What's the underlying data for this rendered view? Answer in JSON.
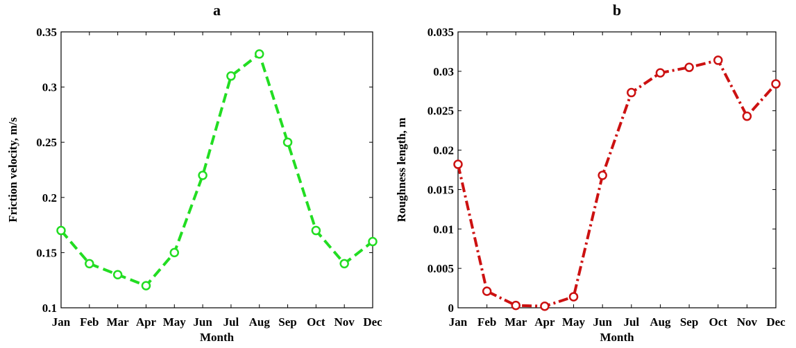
{
  "chart_data": [
    {
      "type": "line",
      "title": "a",
      "xlabel": "Month",
      "ylabel": "Friction velocity, m/s",
      "categories": [
        "Jan",
        "Feb",
        "Mar",
        "Apr",
        "May",
        "Jun",
        "Jul",
        "Aug",
        "Sep",
        "Oct",
        "Nov",
        "Dec"
      ],
      "ylim": [
        0.1,
        0.35
      ],
      "yticks": [
        "0.1",
        "0.15",
        "0.2",
        "0.25",
        "0.3",
        "0.35"
      ],
      "ytick_values": [
        0.1,
        0.15,
        0.2,
        0.25,
        0.3,
        0.35
      ],
      "series": [
        {
          "color": "#22dd22",
          "line_style": "dashed",
          "marker": "circle",
          "values": [
            0.17,
            0.14,
            0.13,
            0.12,
            0.15,
            0.22,
            0.31,
            0.33,
            0.25,
            0.17,
            0.14,
            0.16
          ]
        }
      ]
    },
    {
      "type": "line",
      "title": "b",
      "xlabel": "Month",
      "ylabel": "Roughness length, m",
      "categories": [
        "Jan",
        "Feb",
        "Mar",
        "Apr",
        "May",
        "Jun",
        "Jul",
        "Aug",
        "Sep",
        "Oct",
        "Nov",
        "Dec"
      ],
      "ylim": [
        0,
        0.035
      ],
      "yticks": [
        "0",
        "0.005",
        "0.01",
        "0.015",
        "0.02",
        "0.025",
        "0.03",
        "0.035"
      ],
      "ytick_values": [
        0,
        0.005,
        0.01,
        0.015,
        0.02,
        0.025,
        0.03,
        0.035
      ],
      "series": [
        {
          "color": "#cc1111",
          "line_style": "dash-dot",
          "marker": "circle",
          "values": [
            0.0182,
            0.0021,
            0.0003,
            0.0002,
            0.0014,
            0.0168,
            0.0273,
            0.0298,
            0.0305,
            0.0314,
            0.0243,
            0.0284
          ]
        }
      ]
    }
  ]
}
